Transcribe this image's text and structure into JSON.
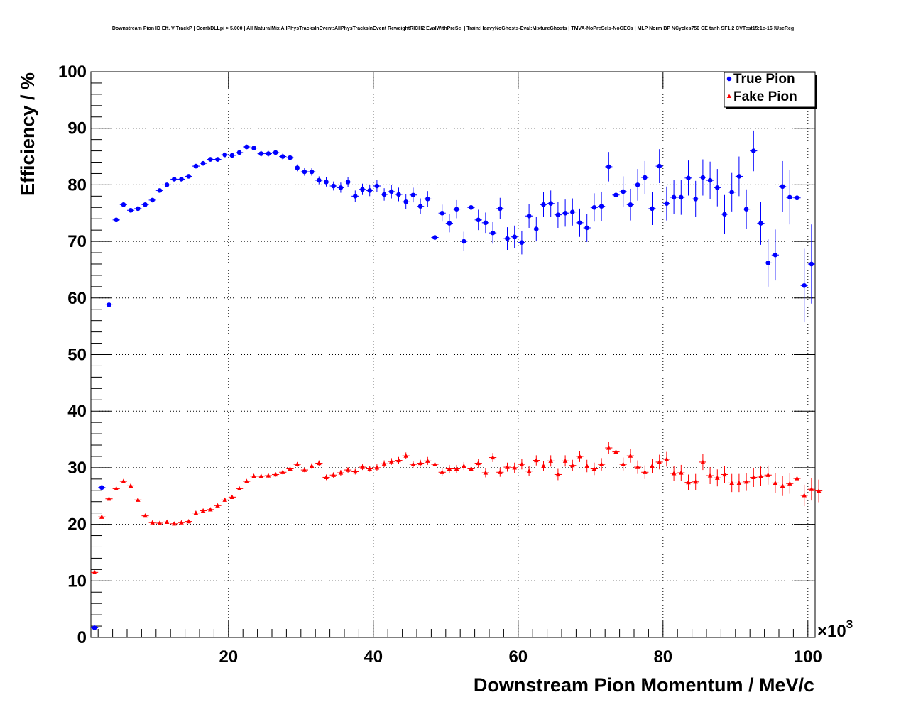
{
  "chart_data": {
    "type": "scatter",
    "title": "Downstream Pion ID Eff. V TrackP | CombDLLpi > 5.000 | All NaturalMix AllPhysTracksInEvent:AllPhysTracksInEvent ReweightRICH2 EvalWithPreSel | Train:HeavyNoGhosts-Eval:MixtureGhosts | TMVA-NoPreSels-NoGECs | MLP Norm BP NCycles750 CE tanh SF1.2 CVTest15:1e-16 !UseReg",
    "xlabel": "Downstream Pion Momentum / MeV/c",
    "ylabel": "Efficiency / %",
    "x_multiplier": "×10",
    "x_multiplier_exp": "3",
    "xlim": [
      1,
      101
    ],
    "ylim": [
      0,
      100
    ],
    "grid": true,
    "legend_position": "top-right",
    "x_ticks": [
      20,
      40,
      60,
      80,
      100
    ],
    "y_ticks": [
      0,
      10,
      20,
      30,
      40,
      50,
      60,
      70,
      80,
      90,
      100
    ],
    "series": [
      {
        "name": "True Pion",
        "marker": "circle",
        "color": "#0000ff",
        "points": [
          [
            1.5,
            1.7,
            0.3
          ],
          [
            2.5,
            26.5,
            0.3
          ],
          [
            3.5,
            58.8,
            0.3
          ],
          [
            4.5,
            73.8,
            0.3
          ],
          [
            5.5,
            76.5,
            0.3
          ],
          [
            6.5,
            75.5,
            0.3
          ],
          [
            7.5,
            75.8,
            0.3
          ],
          [
            8.5,
            76.5,
            0.3
          ],
          [
            9.5,
            77.3,
            0.3
          ],
          [
            10.5,
            79.0,
            0.3
          ],
          [
            11.5,
            80.0,
            0.3
          ],
          [
            12.5,
            81.0,
            0.3
          ],
          [
            13.5,
            81.0,
            0.3
          ],
          [
            14.5,
            81.5,
            0.3
          ],
          [
            15.5,
            83.3,
            0.4
          ],
          [
            16.5,
            83.8,
            0.4
          ],
          [
            17.5,
            84.5,
            0.4
          ],
          [
            18.5,
            84.5,
            0.4
          ],
          [
            19.5,
            85.3,
            0.4
          ],
          [
            20.5,
            85.2,
            0.4
          ],
          [
            21.5,
            85.7,
            0.4
          ],
          [
            22.5,
            86.7,
            0.4
          ],
          [
            23.5,
            86.5,
            0.4
          ],
          [
            24.5,
            85.5,
            0.5
          ],
          [
            25.5,
            85.5,
            0.5
          ],
          [
            26.5,
            85.7,
            0.5
          ],
          [
            27.5,
            85.0,
            0.6
          ],
          [
            28.5,
            84.8,
            0.6
          ],
          [
            29.5,
            83.0,
            0.6
          ],
          [
            30.5,
            82.3,
            0.7
          ],
          [
            31.5,
            82.3,
            0.7
          ],
          [
            32.5,
            80.8,
            0.7
          ],
          [
            33.5,
            80.5,
            0.8
          ],
          [
            34.5,
            79.8,
            0.8
          ],
          [
            35.5,
            79.5,
            0.9
          ],
          [
            36.5,
            80.5,
            0.9
          ],
          [
            37.5,
            78.0,
            1.0
          ],
          [
            38.5,
            79.2,
            1.0
          ],
          [
            39.5,
            79.0,
            1.0
          ],
          [
            40.5,
            79.8,
            1.1
          ],
          [
            41.5,
            78.3,
            1.1
          ],
          [
            42.5,
            78.8,
            1.2
          ],
          [
            43.5,
            78.3,
            1.2
          ],
          [
            44.5,
            77.0,
            1.3
          ],
          [
            45.5,
            78.2,
            1.3
          ],
          [
            46.5,
            76.2,
            1.4
          ],
          [
            47.5,
            77.5,
            1.4
          ],
          [
            48.5,
            70.7,
            1.5
          ],
          [
            49.5,
            75.0,
            1.5
          ],
          [
            50.5,
            73.2,
            1.6
          ],
          [
            51.5,
            75.7,
            1.6
          ],
          [
            52.5,
            70.0,
            1.7
          ],
          [
            53.5,
            76.0,
            1.7
          ],
          [
            54.5,
            73.8,
            1.8
          ],
          [
            55.5,
            73.3,
            1.8
          ],
          [
            56.5,
            71.5,
            1.9
          ],
          [
            57.5,
            75.8,
            1.9
          ],
          [
            58.5,
            70.5,
            2.0
          ],
          [
            59.5,
            70.8,
            2.0
          ],
          [
            60.5,
            69.8,
            2.1
          ],
          [
            61.5,
            74.5,
            2.1
          ],
          [
            62.5,
            72.2,
            2.2
          ],
          [
            63.5,
            76.5,
            2.2
          ],
          [
            64.5,
            76.7,
            2.3
          ],
          [
            65.5,
            74.7,
            2.3
          ],
          [
            66.5,
            75.0,
            2.4
          ],
          [
            67.5,
            75.2,
            2.4
          ],
          [
            68.5,
            73.3,
            2.5
          ],
          [
            69.5,
            72.4,
            2.5
          ],
          [
            70.5,
            76.0,
            2.5
          ],
          [
            71.5,
            76.2,
            2.6
          ],
          [
            72.5,
            83.2,
            2.6
          ],
          [
            73.5,
            78.2,
            2.7
          ],
          [
            74.5,
            78.8,
            2.7
          ],
          [
            75.5,
            76.5,
            2.8
          ],
          [
            76.5,
            80.0,
            2.8
          ],
          [
            77.5,
            81.3,
            2.9
          ],
          [
            78.5,
            75.8,
            2.9
          ],
          [
            79.5,
            83.3,
            3.0
          ],
          [
            80.5,
            76.7,
            3.0
          ],
          [
            81.5,
            77.8,
            3.0
          ],
          [
            82.5,
            77.8,
            3.1
          ],
          [
            83.5,
            81.2,
            3.1
          ],
          [
            84.5,
            77.5,
            3.2
          ],
          [
            85.5,
            81.3,
            3.2
          ],
          [
            86.5,
            80.8,
            3.3
          ],
          [
            87.5,
            79.5,
            3.3
          ],
          [
            88.5,
            74.8,
            3.4
          ],
          [
            89.5,
            78.7,
            3.4
          ],
          [
            90.5,
            81.5,
            3.5
          ],
          [
            91.5,
            75.7,
            3.5
          ],
          [
            92.5,
            86.0,
            3.6
          ],
          [
            93.5,
            73.2,
            3.8
          ],
          [
            94.5,
            66.2,
            4.2
          ],
          [
            95.5,
            67.6,
            4.5
          ],
          [
            96.5,
            79.7,
            4.5
          ],
          [
            97.5,
            77.8,
            4.8
          ],
          [
            98.5,
            77.7,
            5.0
          ],
          [
            99.5,
            62.2,
            6.5
          ],
          [
            100.5,
            66.0,
            7.0
          ]
        ]
      },
      {
        "name": "Fake Pion",
        "marker": "triangle",
        "color": "#ff0000",
        "points": [
          [
            1.5,
            11.5,
            0.3
          ],
          [
            2.5,
            21.3,
            0.3
          ],
          [
            3.5,
            24.5,
            0.3
          ],
          [
            4.5,
            26.3,
            0.3
          ],
          [
            5.5,
            27.6,
            0.3
          ],
          [
            6.5,
            26.8,
            0.3
          ],
          [
            7.5,
            24.3,
            0.3
          ],
          [
            8.5,
            21.5,
            0.3
          ],
          [
            9.5,
            20.3,
            0.3
          ],
          [
            10.5,
            20.2,
            0.3
          ],
          [
            11.5,
            20.4,
            0.3
          ],
          [
            12.5,
            20.1,
            0.3
          ],
          [
            13.5,
            20.3,
            0.3
          ],
          [
            14.5,
            20.5,
            0.3
          ],
          [
            15.5,
            22.0,
            0.3
          ],
          [
            16.5,
            22.4,
            0.3
          ],
          [
            17.5,
            22.6,
            0.3
          ],
          [
            18.5,
            23.3,
            0.3
          ],
          [
            19.5,
            24.3,
            0.3
          ],
          [
            20.5,
            24.8,
            0.3
          ],
          [
            21.5,
            26.3,
            0.3
          ],
          [
            22.5,
            27.6,
            0.3
          ],
          [
            23.5,
            28.5,
            0.4
          ],
          [
            24.5,
            28.5,
            0.4
          ],
          [
            25.5,
            28.6,
            0.4
          ],
          [
            26.5,
            28.8,
            0.4
          ],
          [
            27.5,
            29.2,
            0.4
          ],
          [
            28.5,
            29.8,
            0.4
          ],
          [
            29.5,
            30.6,
            0.4
          ],
          [
            30.5,
            29.6,
            0.4
          ],
          [
            31.5,
            30.3,
            0.5
          ],
          [
            32.5,
            30.8,
            0.5
          ],
          [
            33.5,
            28.3,
            0.5
          ],
          [
            34.5,
            28.7,
            0.5
          ],
          [
            35.5,
            29.1,
            0.5
          ],
          [
            36.5,
            29.6,
            0.5
          ],
          [
            37.5,
            29.3,
            0.5
          ],
          [
            38.5,
            30.1,
            0.5
          ],
          [
            39.5,
            29.8,
            0.5
          ],
          [
            40.5,
            30.0,
            0.6
          ],
          [
            41.5,
            30.7,
            0.6
          ],
          [
            42.5,
            31.1,
            0.6
          ],
          [
            43.5,
            31.3,
            0.6
          ],
          [
            44.5,
            32.1,
            0.6
          ],
          [
            45.5,
            30.6,
            0.6
          ],
          [
            46.5,
            30.8,
            0.6
          ],
          [
            47.5,
            31.2,
            0.7
          ],
          [
            48.5,
            30.6,
            0.7
          ],
          [
            49.5,
            29.2,
            0.7
          ],
          [
            50.5,
            29.8,
            0.7
          ],
          [
            51.5,
            29.8,
            0.7
          ],
          [
            52.5,
            30.3,
            0.7
          ],
          [
            53.5,
            29.8,
            0.8
          ],
          [
            54.5,
            30.8,
            0.8
          ],
          [
            55.5,
            29.1,
            0.8
          ],
          [
            56.5,
            31.8,
            0.8
          ],
          [
            57.5,
            29.2,
            0.8
          ],
          [
            58.5,
            30.1,
            0.8
          ],
          [
            59.5,
            30.0,
            0.9
          ],
          [
            60.5,
            30.6,
            0.9
          ],
          [
            61.5,
            29.4,
            0.9
          ],
          [
            62.5,
            31.3,
            0.9
          ],
          [
            63.5,
            30.3,
            0.9
          ],
          [
            64.5,
            31.2,
            1.0
          ],
          [
            65.5,
            28.8,
            1.0
          ],
          [
            66.5,
            31.2,
            1.0
          ],
          [
            67.5,
            30.4,
            1.0
          ],
          [
            68.5,
            32.0,
            1.0
          ],
          [
            69.5,
            30.3,
            1.1
          ],
          [
            70.5,
            29.8,
            1.1
          ],
          [
            71.5,
            30.6,
            1.1
          ],
          [
            72.5,
            33.5,
            1.1
          ],
          [
            73.5,
            32.8,
            1.1
          ],
          [
            74.5,
            30.6,
            1.2
          ],
          [
            75.5,
            32.1,
            1.2
          ],
          [
            76.5,
            30.1,
            1.2
          ],
          [
            77.5,
            29.2,
            1.2
          ],
          [
            78.5,
            30.3,
            1.3
          ],
          [
            79.5,
            31.0,
            1.3
          ],
          [
            80.5,
            31.5,
            1.3
          ],
          [
            81.5,
            29.0,
            1.3
          ],
          [
            82.5,
            29.1,
            1.4
          ],
          [
            83.5,
            27.4,
            1.4
          ],
          [
            84.5,
            27.5,
            1.4
          ],
          [
            85.5,
            31.0,
            1.4
          ],
          [
            86.5,
            28.6,
            1.5
          ],
          [
            87.5,
            28.2,
            1.5
          ],
          [
            88.5,
            28.8,
            1.5
          ],
          [
            89.5,
            27.3,
            1.6
          ],
          [
            90.5,
            27.3,
            1.6
          ],
          [
            91.5,
            27.5,
            1.6
          ],
          [
            92.5,
            28.3,
            1.7
          ],
          [
            93.5,
            28.5,
            1.7
          ],
          [
            94.5,
            28.7,
            1.7
          ],
          [
            95.5,
            27.3,
            1.8
          ],
          [
            96.5,
            26.8,
            1.8
          ],
          [
            97.5,
            27.2,
            1.8
          ],
          [
            98.5,
            28.1,
            1.9
          ],
          [
            99.5,
            25.1,
            1.9
          ],
          [
            100.5,
            26.2,
            2.0
          ],
          [
            101.5,
            25.9,
            2.0
          ]
        ]
      }
    ]
  }
}
